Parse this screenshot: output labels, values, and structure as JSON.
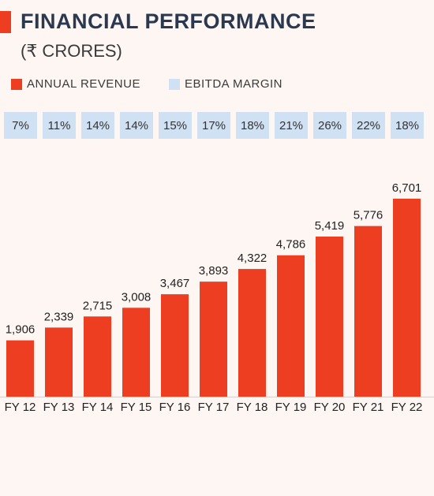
{
  "header": {
    "title": "FINANCIAL PERFORMANCE",
    "subtitle": "(₹ CRORES)"
  },
  "legend": {
    "revenue_label": "ANNUAL REVENUE",
    "margin_label": "EBITDA MARGIN",
    "revenue_color": "#ee3e22",
    "margin_color": "#cfe1f3"
  },
  "chart_data": {
    "type": "bar",
    "title": "FINANCIAL PERFORMANCE",
    "subtitle": "(₹ CRORES)",
    "categories": [
      "FY 12",
      "FY 13",
      "FY 14",
      "FY 15",
      "FY 16",
      "FY 17",
      "FY 18",
      "FY 19",
      "FY 20",
      "FY 21",
      "FY 22"
    ],
    "series": [
      {
        "name": "ANNUAL REVENUE",
        "values": [
          1906,
          2339,
          2715,
          3008,
          3467,
          3893,
          4322,
          4786,
          5419,
          5776,
          6701
        ]
      },
      {
        "name": "EBITDA MARGIN",
        "values": [
          7,
          11,
          14,
          14,
          15,
          17,
          18,
          21,
          26,
          22,
          18
        ],
        "unit": "%"
      }
    ],
    "value_labels": [
      "1,906",
      "2,339",
      "2,715",
      "3,008",
      "3,467",
      "3,893",
      "4,322",
      "4,786",
      "5,419",
      "5,776",
      "6,701"
    ],
    "margin_labels": [
      "7%",
      "11%",
      "14%",
      "14%",
      "15%",
      "17%",
      "18%",
      "21%",
      "26%",
      "22%",
      "18%"
    ],
    "xlabel": "",
    "ylabel": "",
    "ylim": [
      0,
      6701
    ],
    "grid": false,
    "legend_position": "top-left"
  }
}
